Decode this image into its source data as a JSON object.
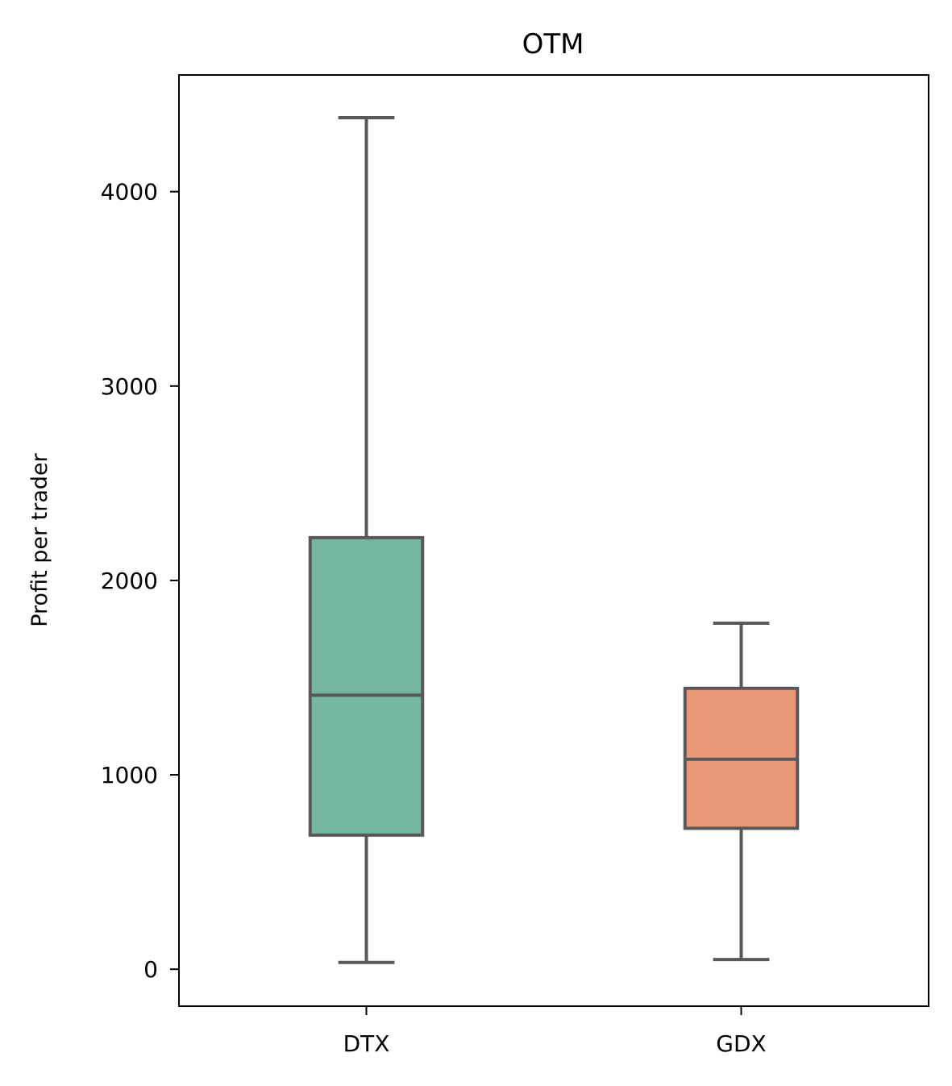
{
  "chart_data": {
    "type": "box",
    "title": "OTM",
    "xlabel": "",
    "ylabel": "Profit per trader",
    "categories": [
      "DTX",
      "GDX"
    ],
    "ylim": [
      -190,
      4600
    ],
    "yticks": [
      0,
      1000,
      2000,
      3000,
      4000
    ],
    "ytick_labels": [
      "0",
      "1000",
      "2000",
      "3000",
      "4000"
    ],
    "grid": false,
    "legend": "none",
    "edge_color": "#595959",
    "boxes": [
      {
        "category": "DTX",
        "whisker_low": 35,
        "q1": 690,
        "median": 1410,
        "q3": 2220,
        "whisker_high": 4380,
        "color": "#74b7a1"
      },
      {
        "category": "GDX",
        "whisker_low": 50,
        "q1": 725,
        "median": 1080,
        "q3": 1445,
        "whisker_high": 1780,
        "color": "#e99878"
      }
    ]
  }
}
